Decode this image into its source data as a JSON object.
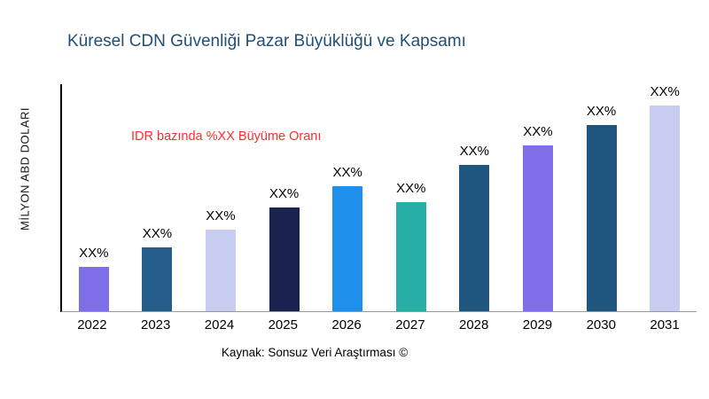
{
  "title": "Küresel CDN Güvenliği Pazar Büyüklüğü ve Kapsamı",
  "ylabel": "MİLYON ABD DOLARI",
  "annotation": "IDR bazında %XX Büyüme Oranı",
  "caption": "Kaynak: Sonsuz Veri Araştırması ©",
  "colors": {
    "title": "#1F4E79",
    "annotation": "#FF2D2D",
    "axis": "#000000"
  },
  "chart_data": {
    "type": "bar",
    "title": "Küresel CDN Güvenliği Pazar Büyüklüğü ve Kapsamı",
    "xlabel": "",
    "ylabel": "MİLYON ABD DOLARI",
    "categories": [
      "2022",
      "2023",
      "2024",
      "2025",
      "2026",
      "2027",
      "2028",
      "2029",
      "2030",
      "2031"
    ],
    "values": [
      50,
      72,
      92,
      117,
      140,
      123,
      164,
      186,
      209,
      232
    ],
    "values_estimated": true,
    "bar_labels": [
      "XX%",
      "XX%",
      "XX%",
      "XX%",
      "XX%",
      "XX%",
      "XX%",
      "XX%",
      "XX%",
      "XX%"
    ],
    "colors": [
      "#7C6FE8",
      "#235E8C",
      "#C7CCF0",
      "#1A2350",
      "#1E8FEB",
      "#27AEA7",
      "#1F567F",
      "#7C6FE8",
      "#1F567F",
      "#C7CCF0"
    ],
    "ylim": [
      0,
      255
    ],
    "grid": false,
    "legend": "none",
    "annotation": "IDR bazında %XX Büyüme Oranı",
    "source": "Kaynak: Sonsuz Veri Araştırması ©"
  }
}
